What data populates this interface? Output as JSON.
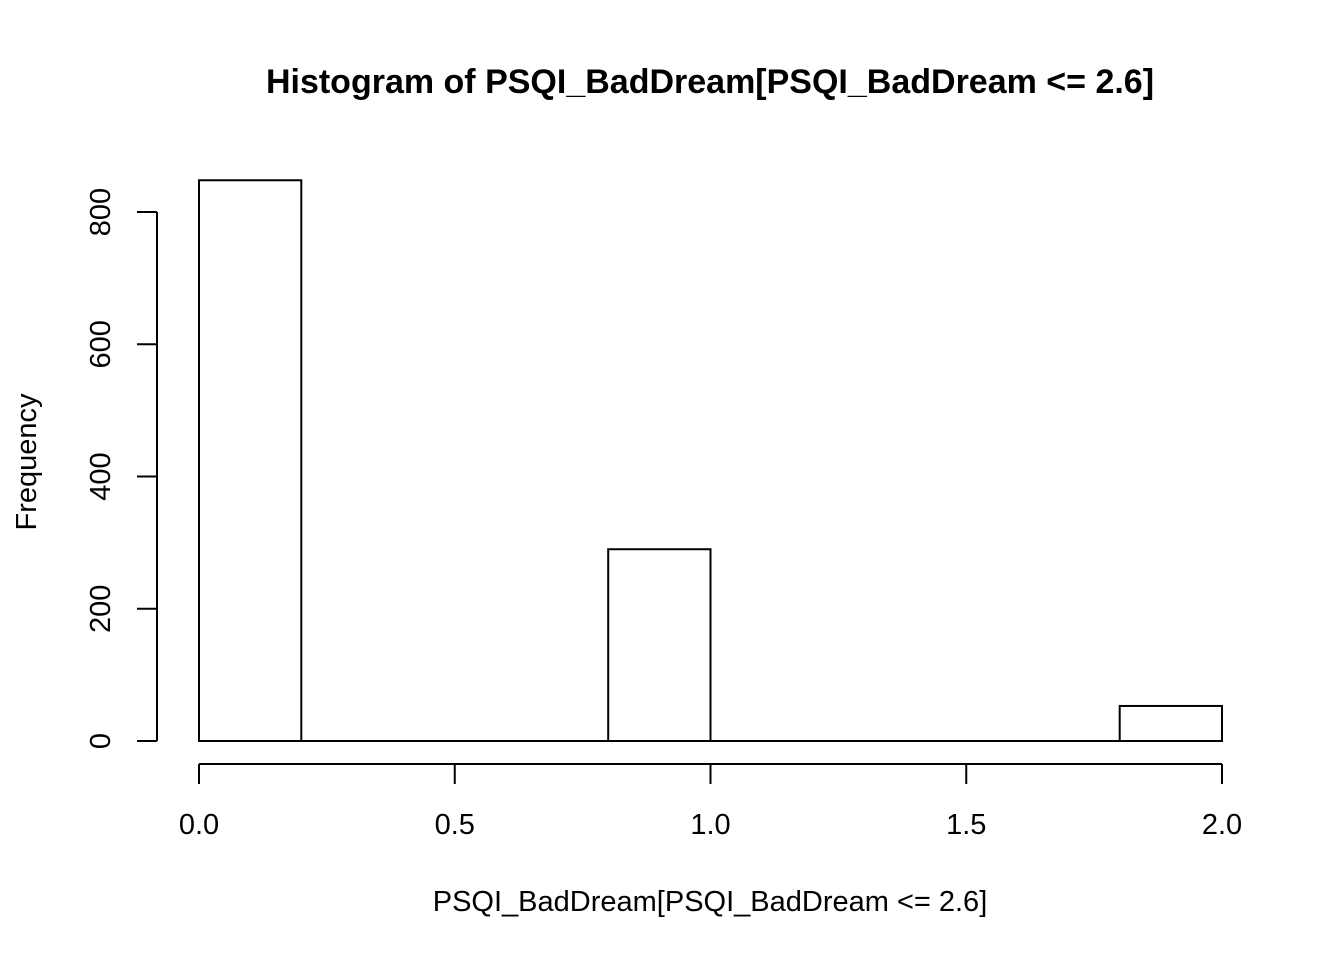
{
  "chart_data": {
    "type": "bar",
    "title": "Histogram of PSQI_BadDream[PSQI_BadDream <= 2.6]",
    "xlabel": "PSQI_BadDream[PSQI_BadDream <= 2.6]",
    "ylabel": "Frequency",
    "bins": [
      {
        "x0": 0.0,
        "x1": 0.2,
        "count": 848
      },
      {
        "x0": 0.2,
        "x1": 0.4,
        "count": 0
      },
      {
        "x0": 0.4,
        "x1": 0.6,
        "count": 0
      },
      {
        "x0": 0.6,
        "x1": 0.8,
        "count": 0
      },
      {
        "x0": 0.8,
        "x1": 1.0,
        "count": 290
      },
      {
        "x0": 1.0,
        "x1": 1.2,
        "count": 0
      },
      {
        "x0": 1.2,
        "x1": 1.4,
        "count": 0
      },
      {
        "x0": 1.4,
        "x1": 1.6,
        "count": 0
      },
      {
        "x0": 1.6,
        "x1": 1.8,
        "count": 0
      },
      {
        "x0": 1.8,
        "x1": 2.0,
        "count": 53
      }
    ],
    "xlim": [
      0.0,
      2.0
    ],
    "ylim": [
      0,
      800
    ],
    "x_ticks": [
      "0.0",
      "0.5",
      "1.0",
      "1.5",
      "2.0"
    ],
    "y_ticks": [
      "0",
      "200",
      "400",
      "600",
      "800"
    ],
    "grid": false,
    "legend": "none",
    "colors": {
      "bar_fill": "#ffffff",
      "bar_stroke": "#000000"
    }
  }
}
